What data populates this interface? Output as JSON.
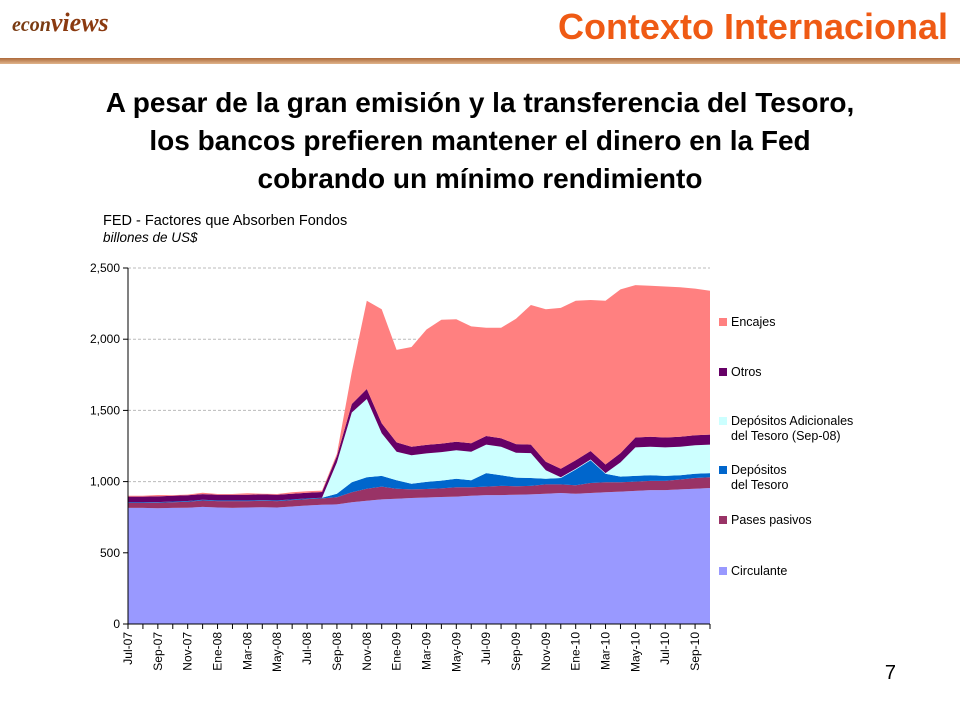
{
  "header": {
    "logo_part1": "econ",
    "logo_part2": "views",
    "section_title": "Contexto Internacional"
  },
  "headline": [
    "A pesar de la gran emisión y la transferencia del Tesoro,",
    "los bancos prefieren mantener el dinero en la Fed",
    "cobrando un mínimo rendimiento"
  ],
  "slide_number": "7",
  "chart_data": {
    "type": "area",
    "stacked": true,
    "title": "FED - Factores que Absorben Fondos",
    "subtitle": "billones de US$",
    "ylim": [
      0,
      2500
    ],
    "yticks": [
      0,
      500,
      1000,
      1500,
      2000,
      2500
    ],
    "ytick_labels": [
      "0",
      "500",
      "1,000",
      "1,500",
      "2,000",
      "2,500"
    ],
    "grid": "horizontal dashed",
    "legend_position": "right",
    "x_tick_labels": [
      "Jul-07",
      "Sep-07",
      "Nov-07",
      "Ene-08",
      "Mar-08",
      "May-08",
      "Jul-08",
      "Sep-08",
      "Nov-08",
      "Ene-09",
      "Mar-09",
      "May-09",
      "Jul-09",
      "Sep-09",
      "Nov-09",
      "Ene-10",
      "Mar-10",
      "May-10",
      "Jul-10",
      "Sep-10"
    ],
    "x": [
      "Jul-07",
      "Ago-07",
      "Sep-07",
      "Oct-07",
      "Nov-07",
      "Dic-07",
      "Ene-08",
      "Feb-08",
      "Mar-08",
      "Abr-08",
      "May-08",
      "Jun-08",
      "Jul-08",
      "Ago-08",
      "Sep-08",
      "Oct-08",
      "Nov-08",
      "Dic-08",
      "Ene-09",
      "Feb-09",
      "Mar-09",
      "Abr-09",
      "May-09",
      "Jun-09",
      "Jul-09",
      "Ago-09",
      "Sep-09",
      "Oct-09",
      "Nov-09",
      "Dic-09",
      "Ene-10",
      "Feb-10",
      "Mar-10",
      "Abr-10",
      "May-10",
      "Jun-10",
      "Jul-10",
      "Ago-10",
      "Sep-10",
      "Oct-10"
    ],
    "series": [
      {
        "name": "Circulante",
        "color": "#9999ff",
        "values": [
          815,
          815,
          813,
          815,
          817,
          822,
          818,
          815,
          818,
          820,
          818,
          825,
          832,
          837,
          840,
          855,
          865,
          875,
          880,
          885,
          888,
          892,
          895,
          900,
          905,
          905,
          908,
          910,
          915,
          920,
          915,
          920,
          925,
          930,
          935,
          940,
          940,
          945,
          950,
          955
        ]
      },
      {
        "name": "Pases pasivos",
        "color": "#993366",
        "values": [
          35,
          35,
          38,
          40,
          42,
          45,
          45,
          48,
          45,
          45,
          45,
          45,
          45,
          45,
          50,
          70,
          85,
          90,
          70,
          60,
          60,
          60,
          65,
          60,
          60,
          65,
          60,
          60,
          65,
          60,
          60,
          70,
          70,
          65,
          65,
          65,
          65,
          70,
          75,
          75
        ]
      },
      {
        "name": "Depósitos del Tesoro",
        "color": "#0066cc",
        "values": [
          5,
          5,
          5,
          5,
          5,
          5,
          5,
          5,
          5,
          5,
          5,
          5,
          5,
          5,
          25,
          70,
          80,
          75,
          60,
          40,
          50,
          55,
          60,
          50,
          95,
          75,
          60,
          55,
          40,
          45,
          110,
          160,
          60,
          40,
          40,
          40,
          35,
          30,
          30,
          30
        ]
      },
      {
        "name": "Depósitos Adicionales del Tesoro (Sep-08)",
        "color": "#ccffff",
        "values": [
          0,
          0,
          0,
          0,
          0,
          0,
          0,
          0,
          0,
          0,
          0,
          0,
          0,
          0,
          220,
          490,
          550,
          300,
          200,
          200,
          200,
          200,
          200,
          200,
          200,
          200,
          175,
          175,
          60,
          5,
          5,
          5,
          5,
          100,
          200,
          200,
          200,
          200,
          200,
          200
        ]
      },
      {
        "name": "Otros",
        "color": "#660066",
        "values": [
          40,
          40,
          40,
          40,
          40,
          40,
          40,
          40,
          40,
          40,
          40,
          40,
          40,
          40,
          45,
          60,
          70,
          70,
          65,
          60,
          60,
          60,
          60,
          60,
          60,
          60,
          60,
          60,
          60,
          60,
          60,
          60,
          60,
          65,
          70,
          70,
          70,
          70,
          70,
          70
        ]
      },
      {
        "name": "Encajes",
        "color": "#ff8080",
        "values": [
          5,
          5,
          10,
          5,
          5,
          10,
          5,
          5,
          10,
          5,
          5,
          10,
          10,
          10,
          15,
          225,
          620,
          800,
          650,
          700,
          810,
          870,
          860,
          820,
          760,
          775,
          880,
          980,
          1070,
          1130,
          1120,
          1060,
          1150,
          1150,
          1070,
          1060,
          1060,
          1050,
          1030,
          1010
        ]
      }
    ]
  }
}
